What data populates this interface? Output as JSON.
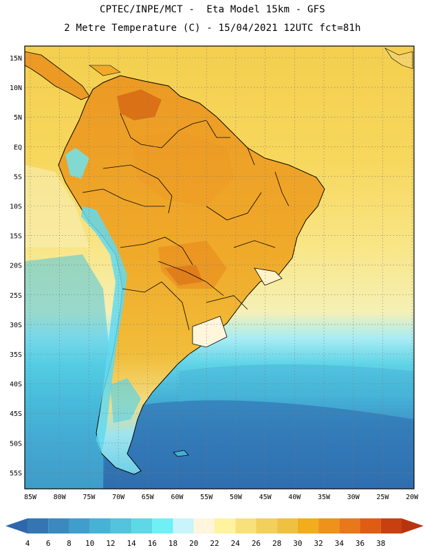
{
  "header": {
    "line1": "CPTEC/INPE/MCT -  Eta Model 15km - GFS",
    "line2": "2 Metre Temperature (C) - 15/04/2021 12UTC fct=81h"
  },
  "map": {
    "lat_labels": [
      "15N",
      "10N",
      "5N",
      "EQ",
      "5S",
      "10S",
      "15S",
      "20S",
      "25S",
      "30S",
      "35S",
      "40S",
      "45S",
      "50S",
      "55S"
    ],
    "lon_labels": [
      "85W",
      "80W",
      "75W",
      "70W",
      "65W",
      "60W",
      "55W",
      "50W",
      "45W",
      "40W",
      "35W",
      "30W",
      "25W",
      "20W"
    ],
    "colors": {
      "warm_land": "#f0b032",
      "hot_land": "#e88a1e",
      "very_hot": "#d66a14",
      "tropical_ocean": "#f5cc4a",
      "subtropical_ocean": "#f7e27a",
      "mid_ocean": "#4fc9e0",
      "cold_ocean": "#2f86b8",
      "deep_cold": "#2e6ab0",
      "andes": "#65e6f0"
    }
  },
  "colorbar": {
    "levels": [
      "4",
      "6",
      "8",
      "10",
      "12",
      "14",
      "16",
      "18",
      "20",
      "22",
      "24",
      "26",
      "28",
      "30",
      "32",
      "34",
      "36",
      "38"
    ],
    "colors": [
      "#3576b2",
      "#3a8ac0",
      "#3f9ecc",
      "#46b2d6",
      "#52c4dd",
      "#5ed8e6",
      "#6ff0f5",
      "#c8f4fb",
      "#fff6dc",
      "#fff3a0",
      "#f8e07a",
      "#f2d05a",
      "#f0c040",
      "#f2ac1c",
      "#ee921a",
      "#e8781a",
      "#df5c12",
      "#c94010"
    ],
    "min_extension_color": "#2e68ac",
    "max_extension_color": "#b83410"
  }
}
